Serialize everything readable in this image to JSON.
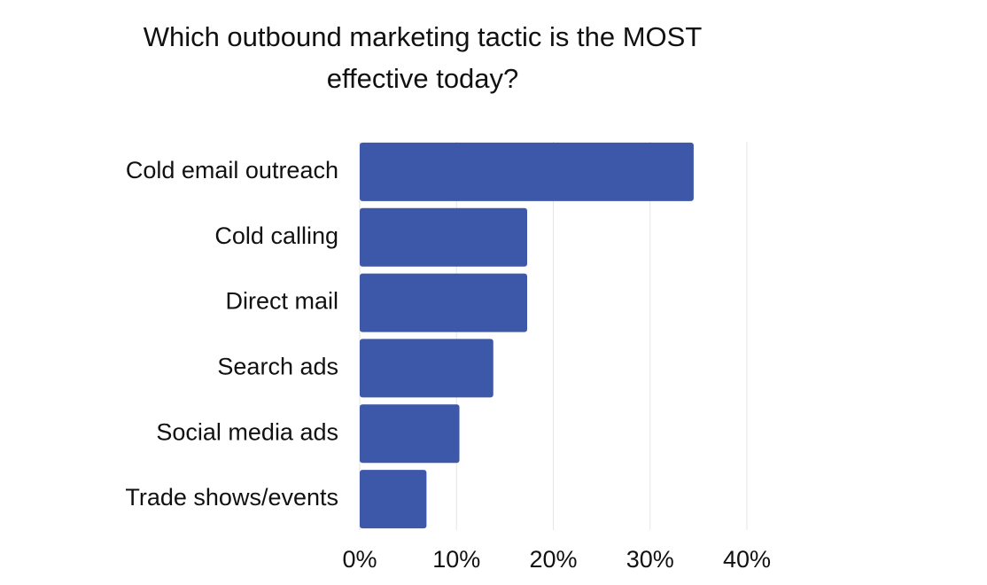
{
  "chart_data": {
    "type": "hbar",
    "title": "Which outbound marketing tactic is the MOST effective today?",
    "categories": [
      "Cold email outreach",
      "Cold calling",
      "Direct mail",
      "Search ads",
      "Social media ads",
      "Trade shows/events"
    ],
    "values": [
      34.5,
      17.3,
      17.3,
      13.8,
      10.3,
      6.9
    ],
    "color": "#3d58a9",
    "xlim": [
      0,
      40
    ],
    "xticks": [
      {
        "value": 0,
        "label": "0%"
      },
      {
        "value": 10,
        "label": "10%"
      },
      {
        "value": 20,
        "label": "20%"
      },
      {
        "value": 30,
        "label": "30%"
      },
      {
        "value": 40,
        "label": "40%"
      }
    ],
    "grid": true
  }
}
